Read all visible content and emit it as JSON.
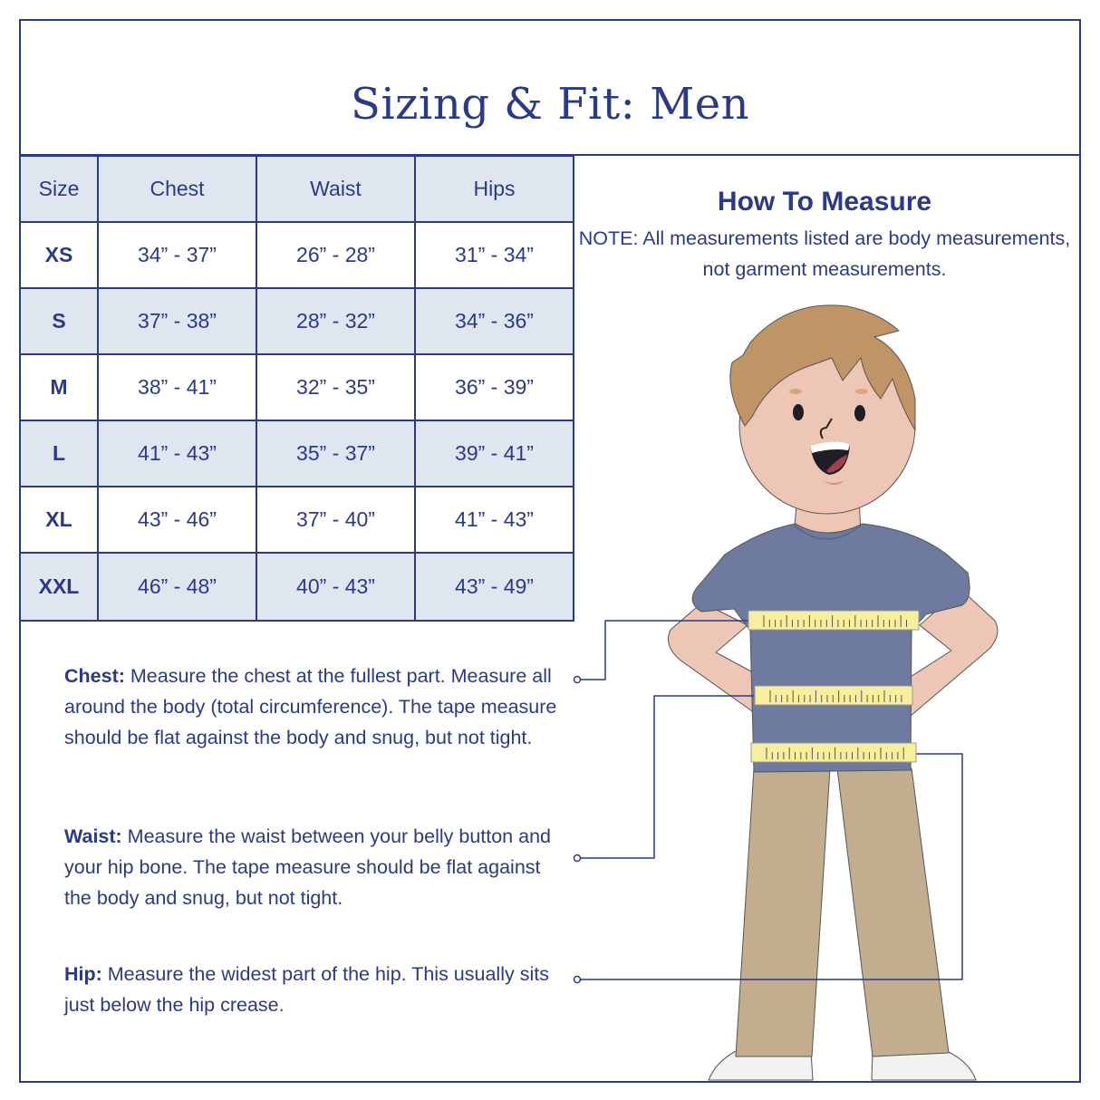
{
  "title": "Sizing & Fit: Men",
  "table": {
    "headers": [
      "Size",
      "Chest",
      "Waist",
      "Hips"
    ],
    "rows": [
      {
        "size": "XS",
        "chest": "34” - 37”",
        "waist": "26” - 28”",
        "hips": "31” - 34”"
      },
      {
        "size": "S",
        "chest": "37” - 38”",
        "waist": "28” - 32”",
        "hips": "34” - 36”"
      },
      {
        "size": "M",
        "chest": "38” - 41”",
        "waist": "32” - 35”",
        "hips": "36” - 39”"
      },
      {
        "size": "L",
        "chest": "41” - 43”",
        "waist": "35” - 37”",
        "hips": "39” - 41”"
      },
      {
        "size": "XL",
        "chest": "43” - 46”",
        "waist": "37” - 40”",
        "hips": "41” - 43”"
      },
      {
        "size": "XXL",
        "chest": "46” - 48”",
        "waist": "40” - 43”",
        "hips": "43” - 49”"
      }
    ]
  },
  "how_to_measure": {
    "heading": "How To Measure",
    "note": "NOTE: All measurements listed are body measurements, not garment measurements."
  },
  "instructions": {
    "chest": {
      "label": "Chest:",
      "text": " Measure the chest at the fullest part. Measure all around the body (total circumference). The tape measure should be flat against the body and snug, but not tight."
    },
    "waist": {
      "label": "Waist:",
      "text": " Measure the waist between your belly button and your hip bone. The tape measure should be flat against the body and snug, but not tight."
    },
    "hip": {
      "label": "Hip:",
      "text": " Measure the widest part of the hip. This usually sits just below the hip crease."
    }
  },
  "colors": {
    "navy": "#2b3a86",
    "header_fill": "#dfe6f0",
    "shirt": "#6e7aa0",
    "pants": "#c2ad8f",
    "skin": "#eec6b5",
    "hair": "#c09465",
    "tape": "#f8ee9c"
  }
}
